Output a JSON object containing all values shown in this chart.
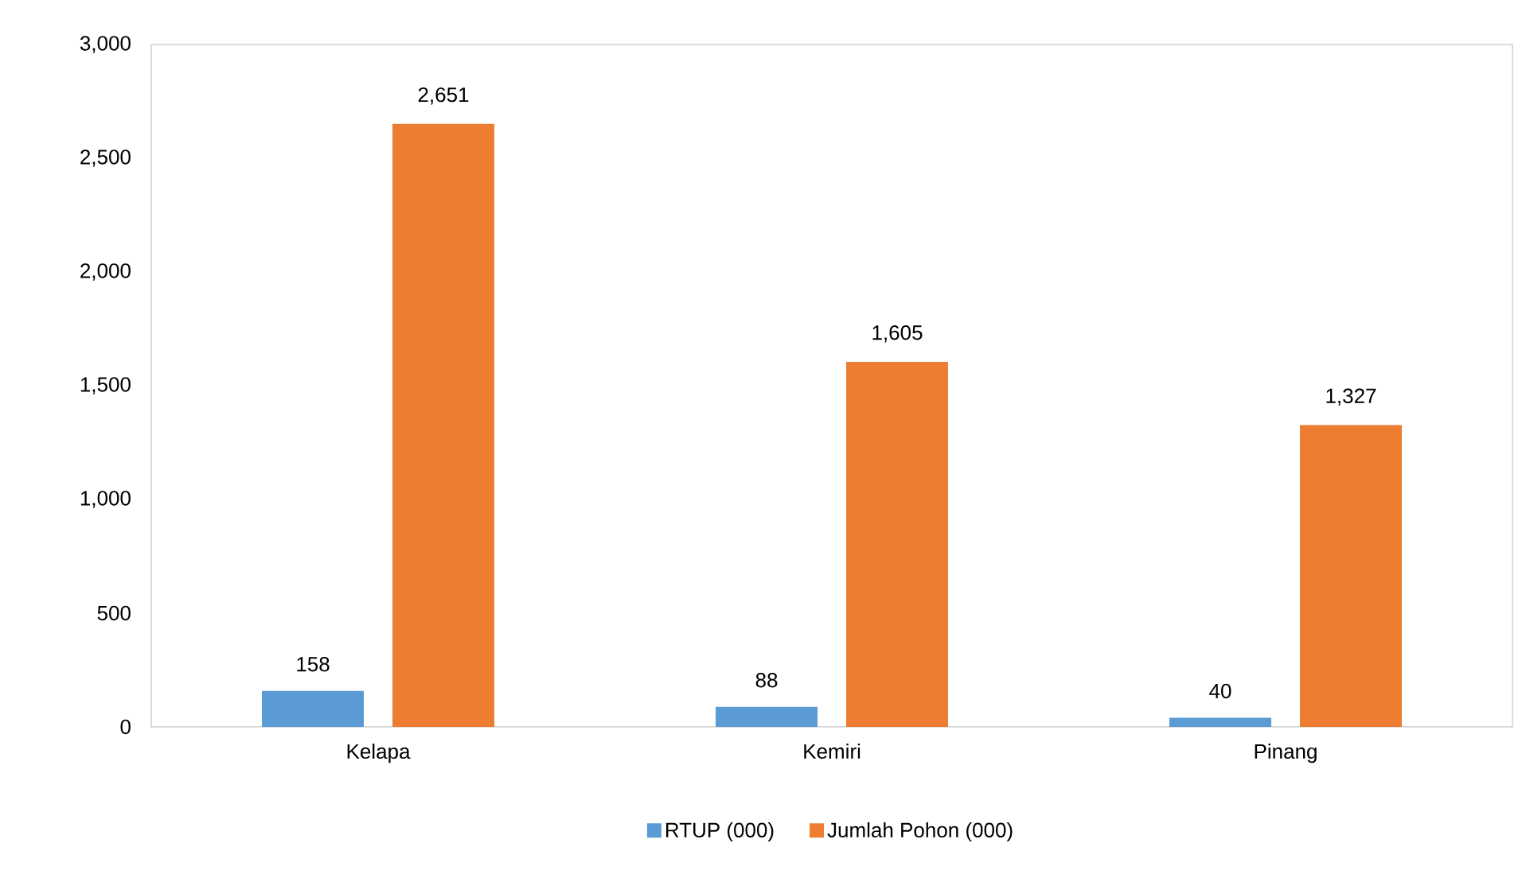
{
  "chart_data": {
    "type": "bar",
    "categories": [
      "Kelapa",
      "Kemiri",
      "Pinang"
    ],
    "series": [
      {
        "name": "RTUP (000)",
        "color": "#5b9bd5",
        "values": [
          158,
          88,
          40
        ],
        "value_labels": [
          "158",
          "88",
          "40"
        ]
      },
      {
        "name": "Jumlah Pohon (000)",
        "color": "#ed7d31",
        "values": [
          2651,
          1605,
          1327
        ],
        "value_labels": [
          "2,651",
          "1,605",
          "1,327"
        ]
      }
    ],
    "ylim": [
      0,
      3000
    ],
    "yticks": [
      {
        "value": 0,
        "label": "0"
      },
      {
        "value": 500,
        "label": "500"
      },
      {
        "value": 1000,
        "label": "1,000"
      },
      {
        "value": 1500,
        "label": "1,500"
      },
      {
        "value": 2000,
        "label": "2,000"
      },
      {
        "value": 2500,
        "label": "2,500"
      },
      {
        "value": 3000,
        "label": "3,000"
      }
    ],
    "grid": false,
    "legend": "bottom"
  }
}
